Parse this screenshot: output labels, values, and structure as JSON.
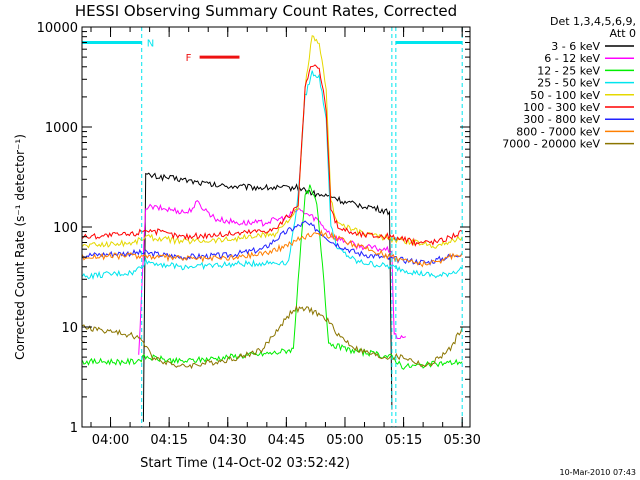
{
  "chart_data": {
    "type": "line",
    "title": "HESSI Observing Summary Count Rates, Corrected",
    "xlabel": "Start Time (14-Oct-02 03:52:42)",
    "ylabel": "Corrected Count Rate (s⁻¹ detector⁻¹)",
    "yscale": "log",
    "ylim": [
      1,
      10000
    ],
    "xlim": [
      3.8783,
      5.5333
    ],
    "y_ticks": [
      {
        "value": 1,
        "label": "1"
      },
      {
        "value": 10,
        "label": "10"
      },
      {
        "value": 100,
        "label": "100"
      },
      {
        "value": 1000,
        "label": "1000"
      },
      {
        "value": 10000,
        "label": "10000"
      }
    ],
    "x_ticks": [
      {
        "value": 4.0,
        "label": "04:00"
      },
      {
        "value": 4.25,
        "label": "04:15"
      },
      {
        "value": 4.5,
        "label": "04:30"
      },
      {
        "value": 4.75,
        "label": "04:45"
      },
      {
        "value": 5.0,
        "label": "05:00"
      },
      {
        "value": 5.25,
        "label": "05:15"
      },
      {
        "value": 5.5,
        "label": "05:30"
      }
    ],
    "legend_header": "Det 1,3,4,5,6,9,",
    "legend_subheader": "Att 0",
    "flags": {
      "night_label": "N",
      "night_color": "#00e5ee",
      "night_level": 7000,
      "night_intervals": [
        [
          3.8783,
          4.133
        ],
        [
          5.217,
          5.5
        ]
      ],
      "saa_boundaries": [
        4.133,
        5.2,
        5.217,
        5.5
      ],
      "flare_label": "F",
      "flare_color": "#ee1111",
      "flare_level": 5000,
      "flare_interval": [
        4.38,
        4.55
      ]
    },
    "series": [
      {
        "name": "3 - 6 keV",
        "color": "#000000",
        "points": [
          [
            4.14,
            1.2
          ],
          [
            4.15,
            330
          ],
          [
            4.3,
            300
          ],
          [
            4.45,
            260
          ],
          [
            4.6,
            250
          ],
          [
            4.75,
            245
          ],
          [
            4.8,
            250
          ],
          [
            4.88,
            210
          ],
          [
            4.95,
            200
          ],
          [
            5.0,
            175
          ],
          [
            5.1,
            160
          ],
          [
            5.19,
            140
          ],
          [
            5.2,
            1.5
          ]
        ]
      },
      {
        "name": "6 - 12 keV",
        "color": "#ff00ff",
        "points": [
          [
            4.12,
            5
          ],
          [
            4.15,
            160
          ],
          [
            4.25,
            150
          ],
          [
            4.33,
            140
          ],
          [
            4.37,
            175
          ],
          [
            4.45,
            120
          ],
          [
            4.55,
            110
          ],
          [
            4.65,
            110
          ],
          [
            4.75,
            125
          ],
          [
            4.8,
            150
          ],
          [
            4.88,
            120
          ],
          [
            4.95,
            80
          ],
          [
            5.05,
            65
          ],
          [
            5.2,
            58
          ],
          [
            5.21,
            8
          ],
          [
            5.26,
            8
          ]
        ]
      },
      {
        "name": "12 - 25 keV",
        "color": "#00ee00",
        "points": [
          [
            3.88,
            4.5
          ],
          [
            4.1,
            4.5
          ],
          [
            4.15,
            5
          ],
          [
            4.3,
            4.5
          ],
          [
            4.5,
            5
          ],
          [
            4.7,
            5.5
          ],
          [
            4.78,
            6
          ],
          [
            4.8,
            30
          ],
          [
            4.83,
            200
          ],
          [
            4.85,
            250
          ],
          [
            4.88,
            170
          ],
          [
            4.91,
            30
          ],
          [
            4.93,
            7
          ],
          [
            5.0,
            6
          ],
          [
            5.2,
            5
          ],
          [
            5.25,
            4
          ],
          [
            5.5,
            4.5
          ]
        ]
      },
      {
        "name": "25 - 50 keV",
        "color": "#00e5ee",
        "points": [
          [
            3.88,
            32
          ],
          [
            4.1,
            35
          ],
          [
            4.15,
            45
          ],
          [
            4.3,
            40
          ],
          [
            4.5,
            42
          ],
          [
            4.7,
            44
          ],
          [
            4.76,
            45
          ],
          [
            4.8,
            200
          ],
          [
            4.83,
            2000
          ],
          [
            4.86,
            3500
          ],
          [
            4.89,
            3200
          ],
          [
            4.92,
            1200
          ],
          [
            4.94,
            100
          ],
          [
            4.97,
            60
          ],
          [
            5.05,
            45
          ],
          [
            5.2,
            40
          ],
          [
            5.3,
            35
          ],
          [
            5.4,
            32
          ],
          [
            5.5,
            38
          ]
        ]
      },
      {
        "name": "50 - 100 keV",
        "color": "#e5d800",
        "points": [
          [
            3.88,
            65
          ],
          [
            4.1,
            70
          ],
          [
            4.15,
            80
          ],
          [
            4.3,
            72
          ],
          [
            4.5,
            75
          ],
          [
            4.7,
            85
          ],
          [
            4.8,
            150
          ],
          [
            4.83,
            2500
          ],
          [
            4.86,
            8000
          ],
          [
            4.89,
            6500
          ],
          [
            4.92,
            2500
          ],
          [
            4.94,
            180
          ],
          [
            4.97,
            110
          ],
          [
            5.05,
            90
          ],
          [
            5.2,
            75
          ],
          [
            5.3,
            70
          ],
          [
            5.4,
            65
          ],
          [
            5.5,
            80
          ]
        ]
      },
      {
        "name": "100 - 300 keV",
        "color": "#ff0000",
        "points": [
          [
            3.88,
            80
          ],
          [
            4.1,
            85
          ],
          [
            4.15,
            95
          ],
          [
            4.3,
            80
          ],
          [
            4.5,
            85
          ],
          [
            4.7,
            95
          ],
          [
            4.8,
            160
          ],
          [
            4.83,
            2500
          ],
          [
            4.86,
            4200
          ],
          [
            4.89,
            3800
          ],
          [
            4.92,
            1500
          ],
          [
            4.94,
            150
          ],
          [
            4.97,
            100
          ],
          [
            5.05,
            85
          ],
          [
            5.2,
            80
          ],
          [
            5.3,
            70
          ],
          [
            5.4,
            72
          ],
          [
            5.5,
            90
          ]
        ]
      },
      {
        "name": "300 - 800 keV",
        "color": "#2222ff",
        "points": [
          [
            3.88,
            52
          ],
          [
            4.1,
            55
          ],
          [
            4.15,
            55
          ],
          [
            4.3,
            50
          ],
          [
            4.5,
            52
          ],
          [
            4.65,
            60
          ],
          [
            4.75,
            90
          ],
          [
            4.83,
            110
          ],
          [
            4.88,
            95
          ],
          [
            4.95,
            70
          ],
          [
            5.05,
            55
          ],
          [
            5.2,
            48
          ],
          [
            5.35,
            44
          ],
          [
            5.5,
            55
          ]
        ]
      },
      {
        "name": "800 - 7000 keV",
        "color": "#ff7f00",
        "points": [
          [
            3.88,
            50
          ],
          [
            4.1,
            52
          ],
          [
            4.2,
            50
          ],
          [
            4.4,
            48
          ],
          [
            4.55,
            50
          ],
          [
            4.7,
            58
          ],
          [
            4.8,
            75
          ],
          [
            4.88,
            90
          ],
          [
            4.95,
            80
          ],
          [
            5.05,
            65
          ],
          [
            5.2,
            50
          ],
          [
            5.35,
            42
          ],
          [
            5.5,
            55
          ]
        ]
      },
      {
        "name": "7000 - 20000 keV",
        "color": "#8b7500",
        "points": [
          [
            3.88,
            10
          ],
          [
            4.0,
            9
          ],
          [
            4.12,
            8
          ],
          [
            4.18,
            5
          ],
          [
            4.3,
            4
          ],
          [
            4.45,
            4.5
          ],
          [
            4.55,
            5
          ],
          [
            4.65,
            6
          ],
          [
            4.72,
            10
          ],
          [
            4.78,
            15
          ],
          [
            4.85,
            15
          ],
          [
            4.92,
            12
          ],
          [
            4.98,
            8
          ],
          [
            5.05,
            6
          ],
          [
            5.15,
            5
          ],
          [
            5.25,
            5
          ],
          [
            5.35,
            4
          ],
          [
            5.45,
            6
          ],
          [
            5.5,
            10
          ]
        ]
      }
    ]
  },
  "footer": {
    "timestamp": "10-Mar-2010 07:43"
  }
}
